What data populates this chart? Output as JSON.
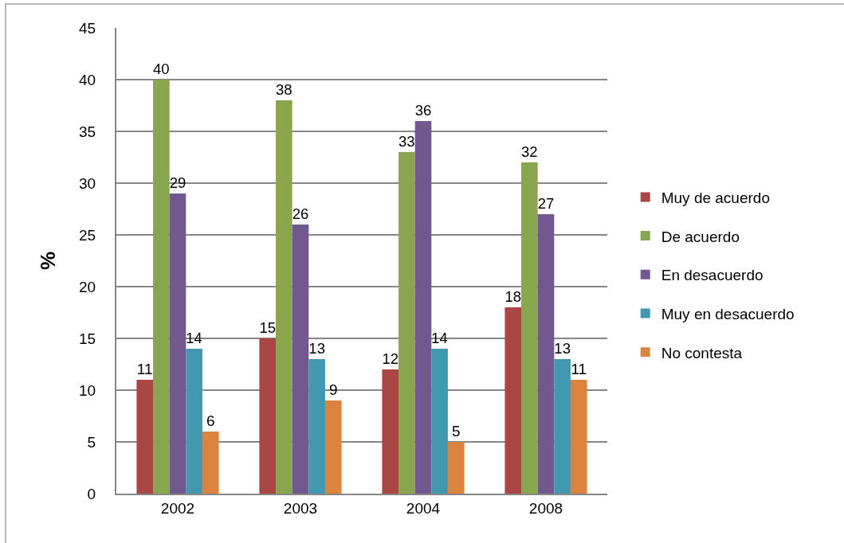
{
  "chart_data": {
    "type": "bar",
    "ylabel": "%",
    "categories": [
      "2002",
      "2003",
      "2004",
      "2008"
    ],
    "series": [
      {
        "name": "Muy de acuerdo",
        "color": "#aa4643",
        "values": [
          11,
          15,
          12,
          18
        ]
      },
      {
        "name": "De acuerdo",
        "color": "#89a54e",
        "values": [
          40,
          38,
          33,
          32
        ]
      },
      {
        "name": "En desacuerdo",
        "color": "#71588f",
        "values": [
          29,
          26,
          36,
          27
        ]
      },
      {
        "name": "Muy en desacuerdo",
        "color": "#4198af",
        "values": [
          14,
          13,
          14,
          13
        ]
      },
      {
        "name": "No contesta",
        "color": "#db843d",
        "values": [
          6,
          9,
          5,
          11
        ]
      }
    ],
    "ylim": [
      0,
      45
    ],
    "yticks": [
      0,
      5,
      10,
      15,
      20,
      25,
      30,
      35,
      40,
      45
    ],
    "grid": "y",
    "legend": "right",
    "data_labels": true
  }
}
